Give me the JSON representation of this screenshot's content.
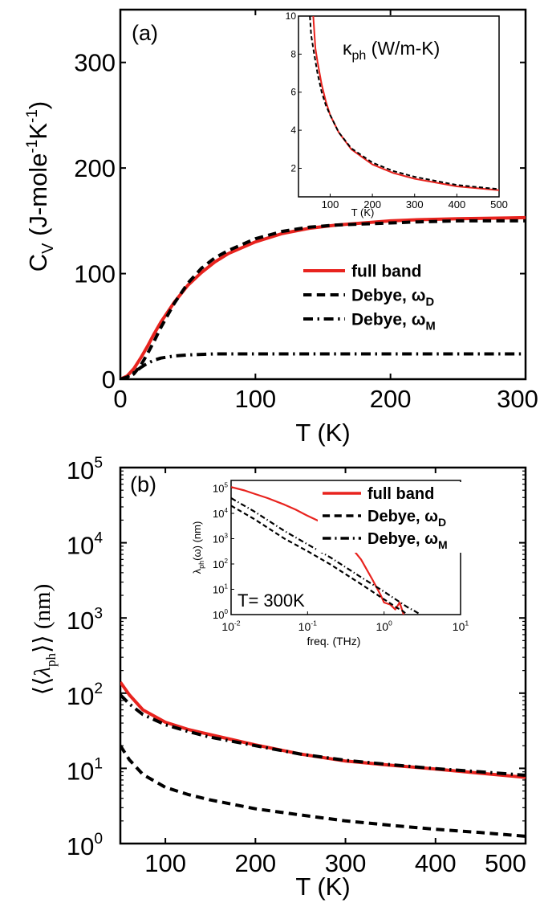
{
  "chart_data": [
    {
      "panel_label": "(a)",
      "type": "line",
      "xlabel": "T (K)",
      "ylabel": {
        "main": "C",
        "sub": "V",
        "units": " (J-mole",
        "exp1": "-1",
        "mid": "K",
        "exp2": "-1",
        "close": ")"
      },
      "xlim": [
        0,
        300
      ],
      "ylim": [
        0,
        350
      ],
      "xticks": [
        "0",
        "100",
        "200",
        "300"
      ],
      "yticks": [
        "0",
        "100",
        "200",
        "300"
      ],
      "legend": {
        "placement": "right",
        "entries": [
          {
            "label": "full band",
            "sub": ""
          },
          {
            "label": "Debye, ω",
            "sub": "D"
          },
          {
            "label": "Debye, ω",
            "sub": "M"
          }
        ]
      },
      "series": [
        {
          "color": "#e8231e",
          "style": "solid",
          "x": [
            0,
            5,
            10,
            15,
            20,
            25,
            30,
            40,
            50,
            60,
            70,
            80,
            100,
            120,
            140,
            160,
            180,
            200,
            220,
            250,
            300
          ],
          "y": [
            0,
            3,
            10,
            20,
            31,
            43,
            54,
            73,
            89,
            101,
            111,
            119,
            130,
            138,
            143,
            146,
            148,
            150,
            151,
            152,
            153
          ]
        },
        {
          "color": "#000000",
          "style": "dashed",
          "x": [
            0,
            5,
            10,
            15,
            20,
            25,
            30,
            40,
            50,
            60,
            70,
            80,
            100,
            120,
            140,
            160,
            180,
            200,
            220,
            250,
            300
          ],
          "y": [
            0,
            1,
            5,
            13,
            24,
            36,
            49,
            72,
            91,
            105,
            115,
            122,
            133,
            140,
            144,
            146,
            147,
            148,
            149,
            150,
            150
          ]
        },
        {
          "color": "#000000",
          "style": "dashdot",
          "x": [
            0,
            5,
            10,
            15,
            20,
            25,
            30,
            40,
            50,
            60,
            70,
            80,
            100,
            150,
            200,
            300
          ],
          "y": [
            0,
            2,
            6,
            11,
            15,
            18,
            20,
            22,
            23,
            23.5,
            24,
            24,
            24,
            24,
            24,
            24
          ]
        }
      ],
      "inset": {
        "title_main": "κ",
        "title_sub": "ph",
        "title_rest": " (W/m-K)",
        "xlabel": "T (K)",
        "xlim": [
          25,
          500
        ],
        "ylim": [
          0.5,
          10
        ],
        "xticks": [
          "100",
          "200",
          "300",
          "400",
          "500"
        ],
        "yticks": [
          "2",
          "4",
          "6",
          "8",
          "10"
        ],
        "series": [
          {
            "color": "#e8231e",
            "style": "solid",
            "x": [
              60,
              65,
              70,
              80,
              90,
              100,
              120,
              150,
              200,
              250,
              300,
              400,
              500
            ],
            "y": [
              10,
              8.3,
              7.6,
              6.4,
              5.5,
              4.8,
              3.9,
              3.0,
              2.2,
              1.75,
              1.45,
              1.05,
              0.85
            ]
          },
          {
            "color": "#000000",
            "style": "dashed",
            "x": [
              52,
              55,
              60,
              70,
              80,
              90,
              100,
              120,
              150,
              200,
              250,
              300,
              400,
              500
            ],
            "y": [
              10,
              9.0,
              8.3,
              7.0,
              6.0,
              5.3,
              4.8,
              3.9,
              3.05,
              2.3,
              1.85,
              1.55,
              1.12,
              0.9
            ]
          }
        ]
      }
    },
    {
      "panel_label": "(b)",
      "type": "line",
      "xlabel": "T (K)",
      "ylabel": {
        "open": "⟨⟨",
        "main": "λ",
        "sub": "ph",
        "close": "⟩⟩",
        "units": " (nm)"
      },
      "yscale": "log",
      "xlim": [
        50,
        500
      ],
      "ylim": [
        1,
        100000
      ],
      "xticks": [
        "100",
        "200",
        "300",
        "400",
        "500"
      ],
      "yticks": [
        {
          "base": "10",
          "exp": "0"
        },
        {
          "base": "10",
          "exp": "1"
        },
        {
          "base": "10",
          "exp": "2"
        },
        {
          "base": "10",
          "exp": "3"
        },
        {
          "base": "10",
          "exp": "4"
        },
        {
          "base": "10",
          "exp": "5"
        }
      ],
      "legend": {
        "placement": "top-right",
        "entries": [
          {
            "label": "full band",
            "sub": ""
          },
          {
            "label": "Debye, ω",
            "sub": "D"
          },
          {
            "label": "Debye, ω",
            "sub": "M"
          }
        ]
      },
      "series": [
        {
          "color": "#e8231e",
          "style": "solid",
          "x": [
            50,
            60,
            75,
            100,
            125,
            150,
            200,
            250,
            300,
            350,
            400,
            450,
            500
          ],
          "y": [
            140,
            95,
            60,
            41,
            33,
            28,
            20.5,
            15.5,
            12.5,
            11.0,
            9.8,
            8.6,
            7.6
          ]
        },
        {
          "color": "#000000",
          "style": "dashed",
          "x": [
            50,
            60,
            75,
            100,
            125,
            150,
            200,
            250,
            300,
            350,
            400,
            450,
            500
          ],
          "y": [
            20,
            13,
            8.3,
            5.6,
            4.5,
            3.8,
            2.9,
            2.4,
            2.0,
            1.75,
            1.55,
            1.4,
            1.25
          ]
        },
        {
          "color": "#000000",
          "style": "dashdot",
          "x": [
            50,
            60,
            75,
            100,
            125,
            150,
            200,
            250,
            300,
            350,
            400,
            450,
            500
          ],
          "y": [
            95,
            72,
            52,
            38,
            31,
            26,
            20,
            15.5,
            12.8,
            11.2,
            9.9,
            9.0,
            8.1
          ]
        }
      ],
      "inset": {
        "ylabel": {
          "main": "λ",
          "sub": "ph",
          "rest": "(ω) (nm)"
        },
        "xlabel": "freq. (THz)",
        "annotation": "T= 300K",
        "xscale": "log",
        "yscale": "log",
        "xlim": [
          0.01,
          10
        ],
        "ylim": [
          1,
          200000
        ],
        "xticks": [
          {
            "base": "10",
            "exp": "-2"
          },
          {
            "base": "10",
            "exp": "-1"
          },
          {
            "base": "10",
            "exp": "0"
          },
          {
            "base": "10",
            "exp": "1"
          }
        ],
        "yticks": [
          {
            "base": "10",
            "exp": "0"
          },
          {
            "base": "10",
            "exp": "1"
          },
          {
            "base": "10",
            "exp": "2"
          },
          {
            "base": "10",
            "exp": "3"
          },
          {
            "base": "10",
            "exp": "4"
          },
          {
            "base": "10",
            "exp": "5"
          }
        ],
        "series": [
          {
            "color": "#e8231e",
            "style": "solid",
            "x": [
              0.01,
              0.015,
              0.02,
              0.03,
              0.05,
              0.07,
              0.1,
              0.15,
              0.2,
              0.3,
              0.4,
              0.5,
              0.7,
              0.9,
              1.0,
              1.2,
              1.4,
              1.6,
              1.8
            ],
            "y": [
              110000,
              80000,
              60000,
              40000,
              22000,
              14000,
              8000,
              4500,
              2500,
              900,
              350,
              150,
              25,
              6,
              3,
              2.5,
              1.6,
              3,
              1
            ]
          },
          {
            "color": "#000000",
            "style": "dashed",
            "x": [
              0.01,
              0.02,
              0.05,
              0.1,
              0.2,
              0.5,
              1.0,
              1.5,
              1.7,
              2.0
            ],
            "y": [
              20000,
              6000,
              1000,
              320,
              95,
              16,
              4,
              1.8,
              1.5,
              1
            ]
          },
          {
            "color": "#000000",
            "style": "dashdot",
            "x": [
              0.01,
              0.02,
              0.05,
              0.1,
              0.2,
              0.5,
              1.0,
              2.0,
              2.6,
              3.0
            ],
            "y": [
              40000,
              12000,
              2000,
              600,
              180,
              30,
              8,
              2,
              1.3,
              1
            ]
          }
        ]
      }
    }
  ]
}
